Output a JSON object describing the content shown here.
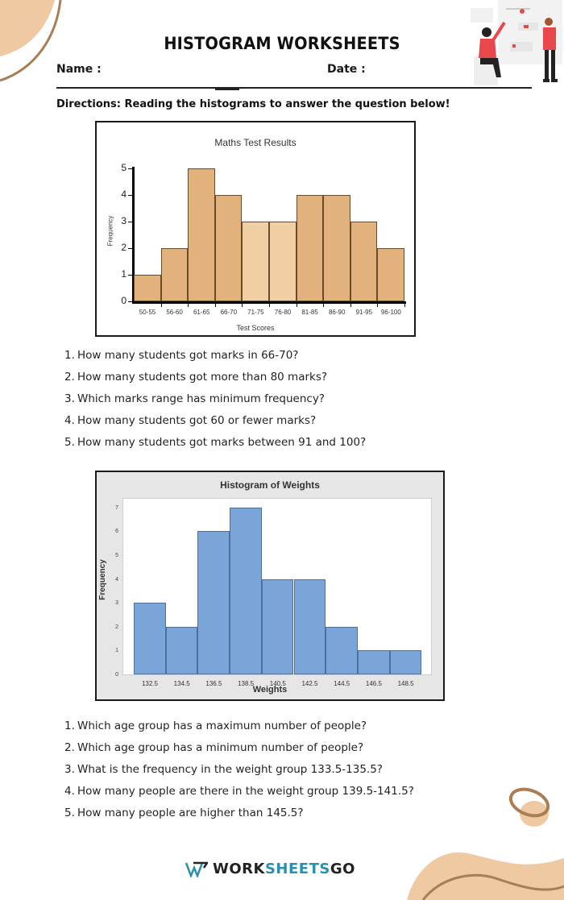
{
  "header": {
    "title": "HISTOGRAM WORKSHEETS",
    "name_label": "Name :",
    "date_label": "Date :"
  },
  "directions": "Directions: Reading the histograms to answer the question below!",
  "colors": {
    "accent_peach": "#eec9a1",
    "accent_brown": "#a97e55",
    "bar_tan": "#e2b27c",
    "bar_tan_light": "#f1cfa4",
    "bar_blue": "#7ba4d8",
    "brand_blue": "#2b8fb0"
  },
  "chart_data": [
    {
      "type": "bar",
      "title": "Maths Test Results",
      "xlabel": "Test Scores",
      "ylabel": "Frequency",
      "categories": [
        "50-55",
        "56-60",
        "61-65",
        "66-70",
        "71-75",
        "76-80",
        "81-85",
        "86-90",
        "91-95",
        "96-100"
      ],
      "values": [
        1,
        2,
        5,
        4,
        3,
        3,
        4,
        4,
        3,
        2
      ],
      "yticks": [
        "0",
        "1",
        "2",
        "3",
        "4",
        "5"
      ],
      "ylim": [
        0,
        5
      ],
      "grid": false
    },
    {
      "type": "bar",
      "title": "Histogram of Weights",
      "xlabel": "Weights",
      "ylabel": "Frequency",
      "categories": [
        "132.5",
        "134.5",
        "136.5",
        "138.5",
        "140.5",
        "142.5",
        "144.5",
        "146.5",
        "148.5"
      ],
      "values": [
        3,
        2,
        6,
        7,
        4,
        4,
        2,
        1,
        1
      ],
      "yticks": [
        "0",
        "1",
        "2",
        "3",
        "4",
        "5",
        "6",
        "7"
      ],
      "ylim": [
        0,
        7
      ],
      "grid": false
    }
  ],
  "questions_set1": [
    {
      "num": "1.",
      "text": "How many students got marks in 66-70?"
    },
    {
      "num": "2.",
      "text": "How many students got more than 80 marks?"
    },
    {
      "num": "3.",
      "text": "Which marks range has minimum frequency?"
    },
    {
      "num": "4.",
      "text": "How many students got 60 or fewer marks?"
    },
    {
      "num": "5.",
      "text": "How many students got marks between 91 and 100?"
    }
  ],
  "questions_set2": [
    {
      "num": "1.",
      "text": "Which age group has a maximum number of people?"
    },
    {
      "num": "2.",
      "text": "Which age group has a minimum number of people?"
    },
    {
      "num": "3.",
      "text": "What is the frequency in the weight group 133.5-135.5?"
    },
    {
      "num": "4.",
      "text": "How many people are there in the weight group 139.5-141.5?"
    },
    {
      "num": "5.",
      "text": "How many people are higher than 145.5?"
    }
  ],
  "footer": {
    "brand_part1": "WORK",
    "brand_part2": "SHEETS",
    "brand_part3": "GO",
    "logo_icon": "w-logo-icon"
  }
}
